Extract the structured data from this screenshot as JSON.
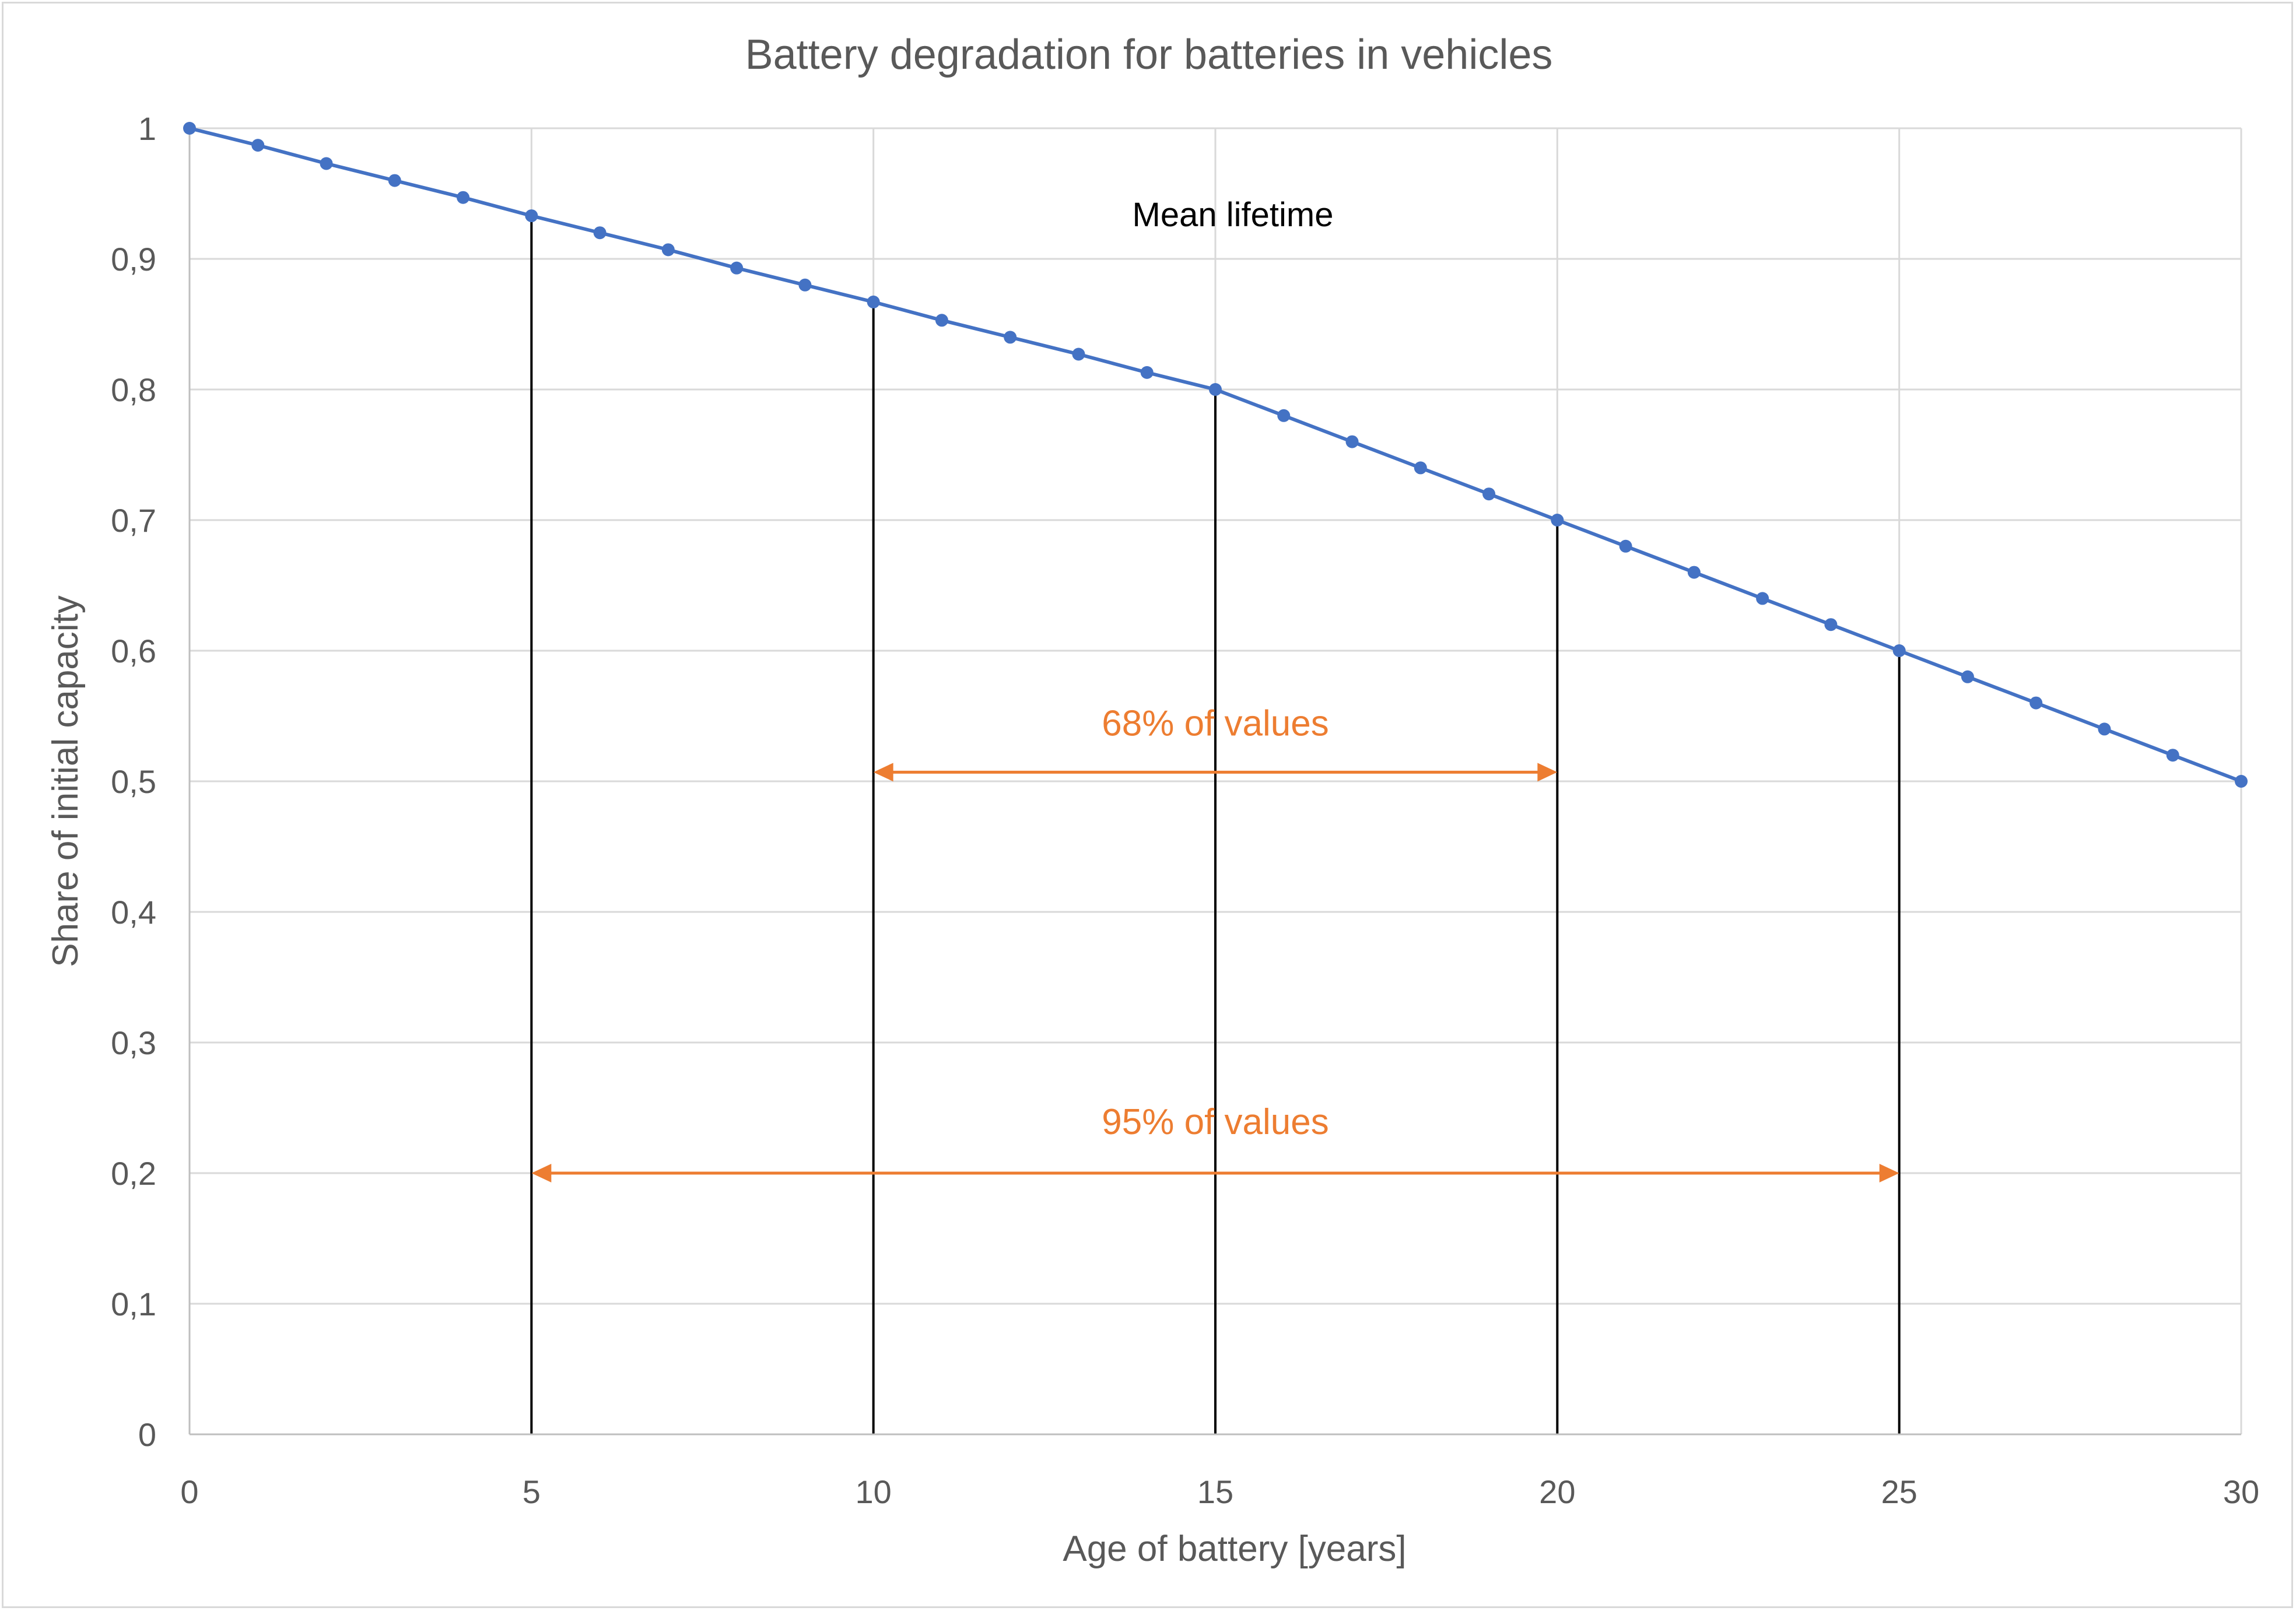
{
  "chart_data": {
    "type": "line",
    "title": "Battery degradation for batteries in vehicles",
    "xlabel": "Age of battery [years]",
    "ylabel": "Share of initial capacity",
    "xlim": [
      0,
      30
    ],
    "ylim": [
      0,
      1
    ],
    "x_ticks": [
      0,
      5,
      10,
      15,
      20,
      25,
      30
    ],
    "x_tick_labels": [
      "0",
      "5",
      "10",
      "15",
      "20",
      "25",
      "30"
    ],
    "y_ticks": [
      0,
      0.1,
      0.2,
      0.3,
      0.4,
      0.5,
      0.6,
      0.7,
      0.8,
      0.9,
      1
    ],
    "y_tick_labels": [
      "0",
      "0,1",
      "0,2",
      "0,3",
      "0,4",
      "0,5",
      "0,6",
      "0,7",
      "0,8",
      "0,9",
      "1"
    ],
    "grid": true,
    "series": [
      {
        "color": "#4472c4",
        "x": [
          0,
          1,
          2,
          3,
          4,
          5,
          6,
          7,
          8,
          9,
          10,
          11,
          12,
          13,
          14,
          15,
          16,
          17,
          18,
          19,
          20,
          21,
          22,
          23,
          24,
          25,
          26,
          27,
          28,
          29,
          30
        ],
        "values": [
          1,
          0.987,
          0.973,
          0.96,
          0.947,
          0.933,
          0.92,
          0.907,
          0.893,
          0.88,
          0.867,
          0.853,
          0.84,
          0.827,
          0.813,
          0.8,
          0.78,
          0.76,
          0.74,
          0.72,
          0.7,
          0.68,
          0.66,
          0.64,
          0.62,
          0.6,
          0.58,
          0.56,
          0.54,
          0.52,
          0.5
        ]
      }
    ],
    "vertical_lines": {
      "color": "#000000",
      "x": [
        5,
        10,
        15,
        20,
        25
      ]
    },
    "annotations": {
      "mean_lifetime": {
        "text": "Mean lifetime",
        "x": 15,
        "y": 0.925,
        "color": "#000000"
      },
      "range_68": {
        "text": "68% of values",
        "x_start": 10,
        "x_end": 20,
        "y": 0.507,
        "label_y": 0.535,
        "color": "#ed7d31"
      },
      "range_95": {
        "text": "95% of values",
        "x_start": 5,
        "x_end": 25,
        "y": 0.2,
        "label_y": 0.23,
        "color": "#ed7d31"
      }
    }
  }
}
